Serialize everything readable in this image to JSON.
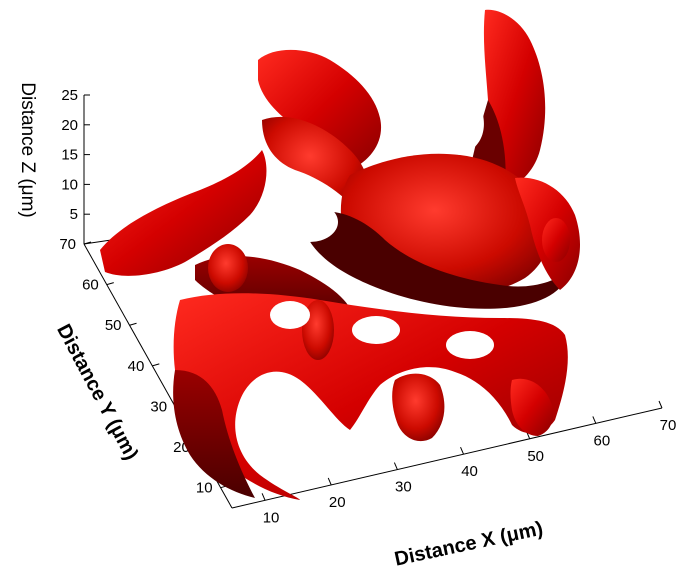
{
  "chart_data": {
    "type": "3d-surface",
    "title": "",
    "xlabel": "Distance X (μm)",
    "ylabel": "Distance Y (μm)",
    "zlabel": "Distance  Z (μm)",
    "x_ticks": [
      10,
      20,
      30,
      40,
      50,
      60,
      70
    ],
    "y_ticks": [
      10,
      20,
      30,
      40,
      50,
      60,
      70
    ],
    "z_ticks": [
      5,
      10,
      15,
      20,
      25
    ],
    "xlim": [
      5,
      70
    ],
    "ylim": [
      5,
      70
    ],
    "zlim": [
      0,
      25
    ],
    "grid": false,
    "surface_color": "#d40000",
    "surface_shadow_color": "#5a0000",
    "background": "#ffffff"
  }
}
